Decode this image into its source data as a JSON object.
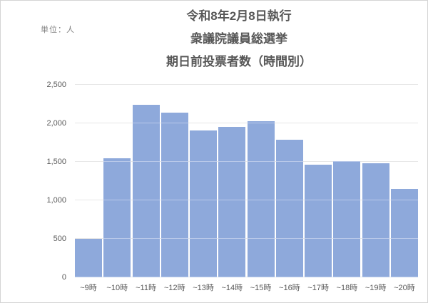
{
  "chart_data": {
    "type": "bar",
    "title": "令和8年2月8日執行 衆議院議員総選挙 期日前投票者数（時間別）",
    "title_lines": [
      "令和8年2月8日執行",
      "衆議院議員総選挙",
      "期日前投票者数（時間別）"
    ],
    "unit_label": "単位：人",
    "categories": [
      "~9時",
      "~10時",
      "~11時",
      "~12時",
      "~13時",
      "~14時",
      "~15時",
      "~16時",
      "~17時",
      "~18時",
      "~19時",
      "~20時"
    ],
    "values": [
      500,
      1550,
      2240,
      2140,
      1910,
      1950,
      2030,
      1790,
      1460,
      1510,
      1480,
      1150
    ],
    "xlabel": "",
    "ylabel": "",
    "ylim": [
      0,
      2500
    ],
    "ytick_interval": 500,
    "ytick_labels": [
      "0",
      "500",
      "1,000",
      "1,500",
      "2,000",
      "2,500"
    ],
    "grid": true,
    "legend": false,
    "colors": {
      "bar": "#8EA9DB",
      "gridline": "#D9D9D9",
      "gridline_overlay": "rgba(255,255,255,0.38)",
      "axis_text": "#595959",
      "title_text": "#575757",
      "unit_text": "#7F7F7F",
      "frame_border": "#D4D4D4"
    }
  }
}
